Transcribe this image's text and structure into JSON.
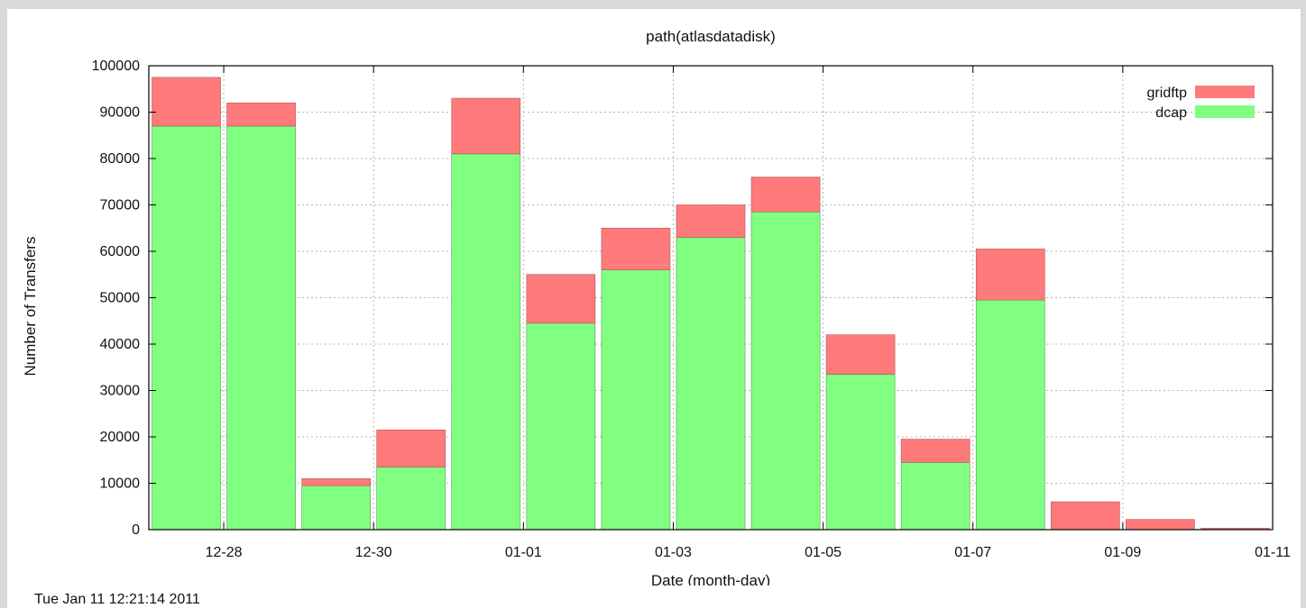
{
  "chart_data": {
    "type": "bar",
    "stacked": true,
    "title": "path(atlasdatadisk)",
    "xlabel": "Date (month-day)",
    "ylabel": "Number of Transfers",
    "ylim": [
      0,
      100000
    ],
    "yticks": [
      0,
      10000,
      20000,
      30000,
      40000,
      50000,
      60000,
      70000,
      80000,
      90000,
      100000
    ],
    "x_tick_labels": [
      "12-28",
      "12-30",
      "01-01",
      "01-03",
      "01-05",
      "01-07",
      "01-09",
      "01-11"
    ],
    "categories": [
      "12-27",
      "12-28",
      "12-29",
      "12-30",
      "12-31",
      "01-01",
      "01-02",
      "01-03",
      "01-04",
      "01-05",
      "01-06",
      "01-07",
      "01-08",
      "01-09",
      "01-10"
    ],
    "series": [
      {
        "name": "dcap",
        "color": "#80ff80",
        "values": [
          87000,
          87000,
          9500,
          13500,
          81000,
          44500,
          56000,
          63000,
          68500,
          33500,
          14500,
          49500,
          0,
          0,
          0
        ]
      },
      {
        "name": "gridftp",
        "color": "#ff7a7a",
        "values": [
          10500,
          5000,
          1500,
          8000,
          12000,
          10500,
          9000,
          7000,
          7500,
          8500,
          5000,
          11000,
          6000,
          2200,
          300
        ]
      }
    ],
    "legend_position": "top-right",
    "grid": true
  },
  "footer": {
    "timestamp": "Tue Jan 11 12:21:14 2011"
  }
}
